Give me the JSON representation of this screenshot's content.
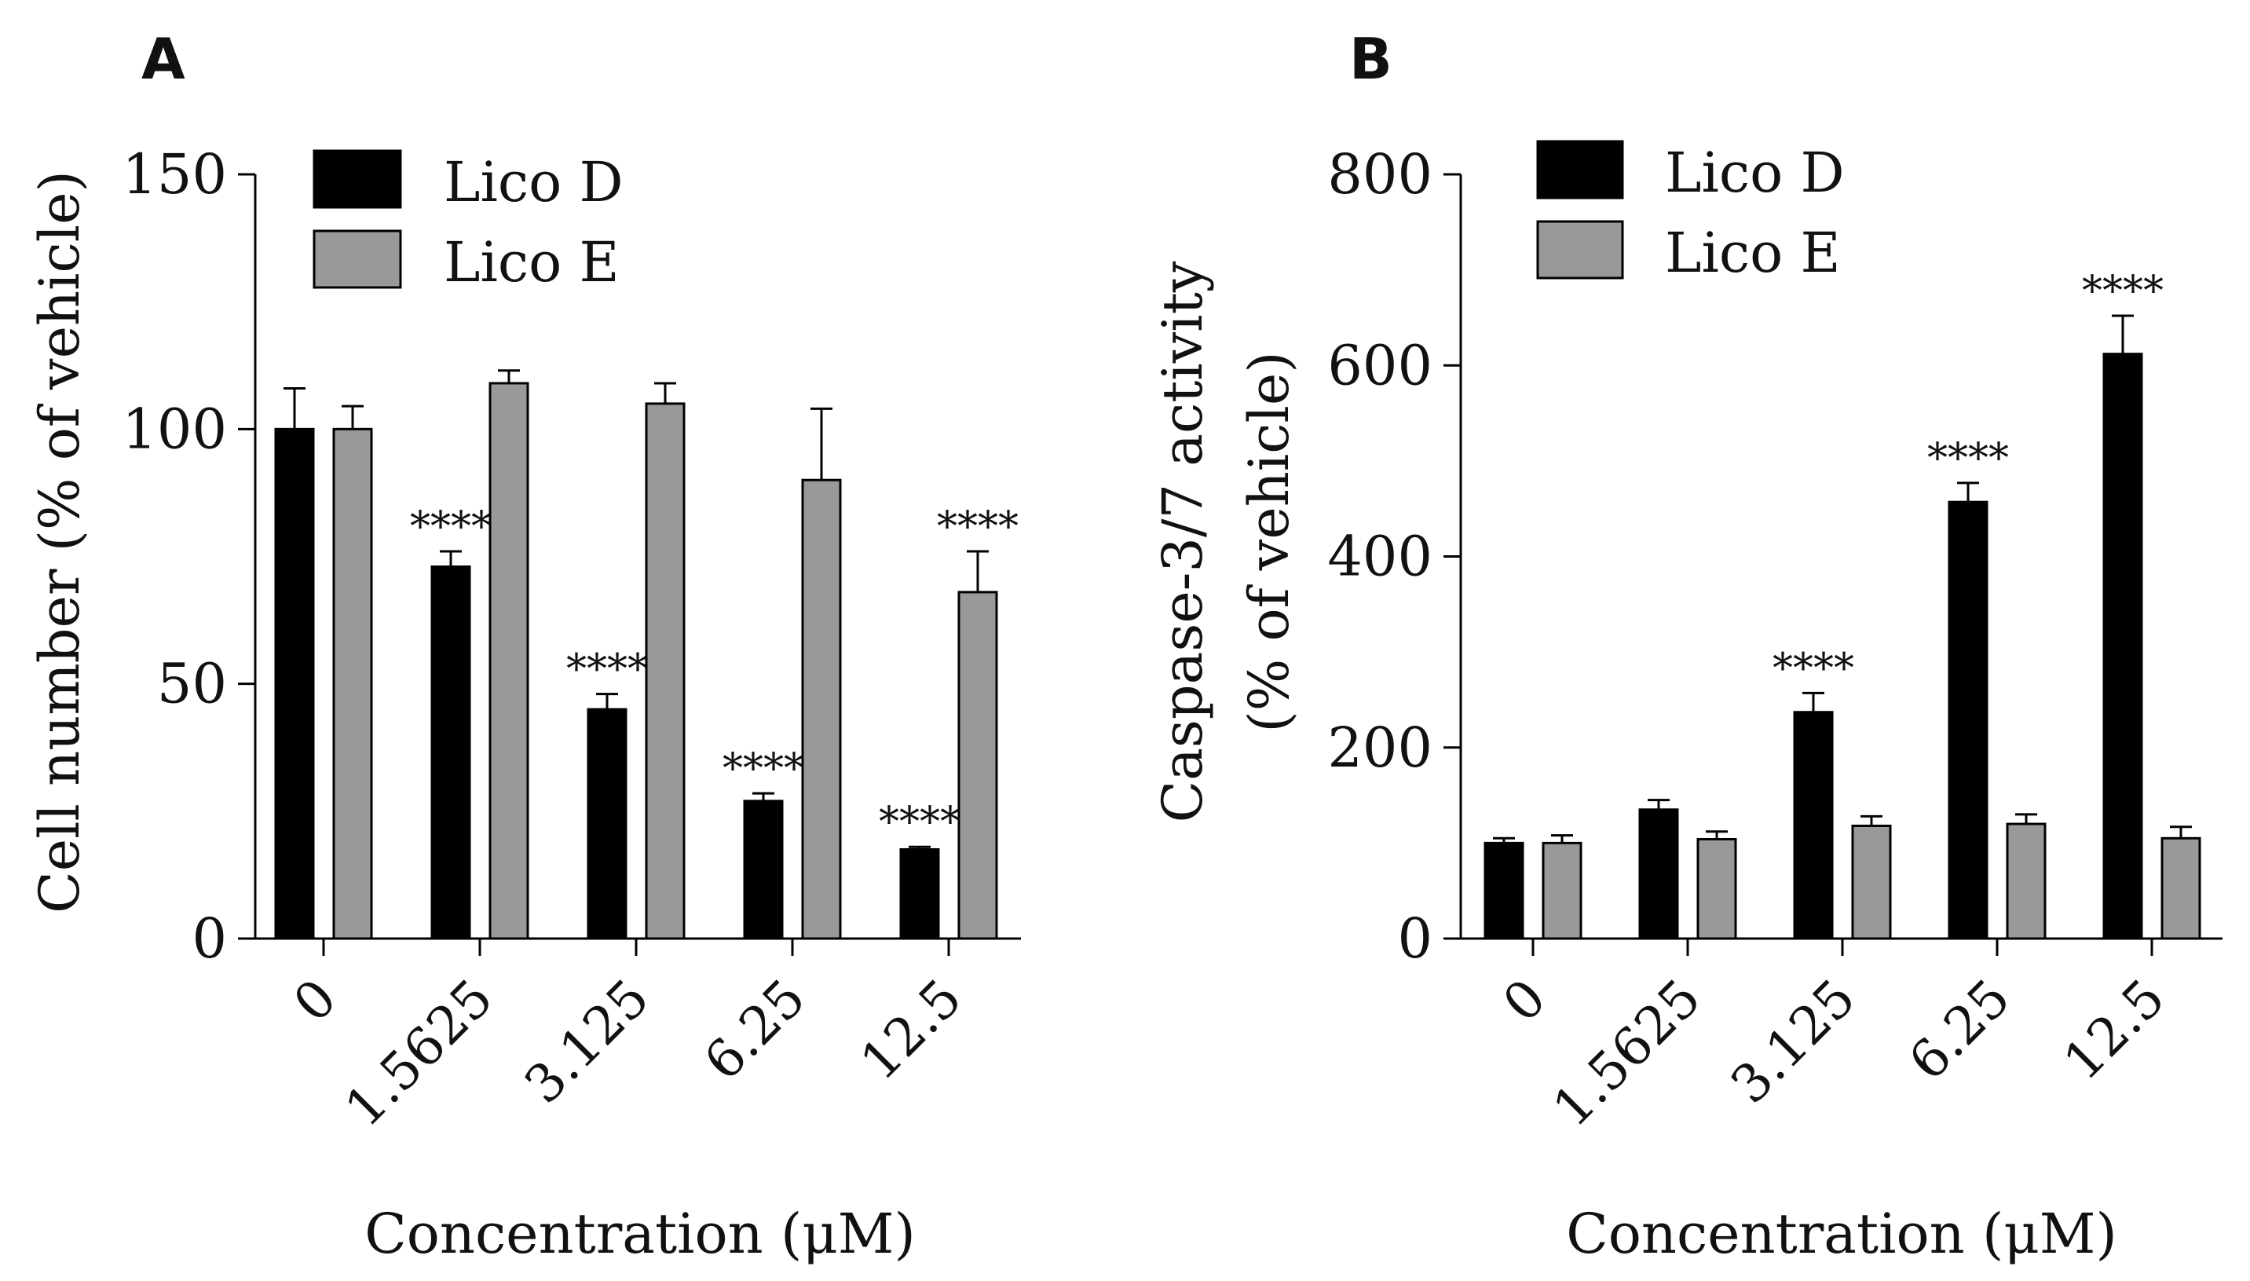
{
  "chart_data": [
    {
      "panel": "A",
      "type": "bar",
      "title": "",
      "xlabel": "Concentration (μM)",
      "ylabel": "Cell number (% of vehicle)",
      "ylim": [
        0,
        150
      ],
      "yticks": [
        0,
        50,
        100,
        150
      ],
      "categories": [
        "0",
        "1.5625",
        "3.125",
        "6.25",
        "12.5"
      ],
      "legend_position": "top-left",
      "colors": {
        "Lico D": "#000000",
        "Lico E": "#999999"
      },
      "series": [
        {
          "name": "Lico D",
          "values": [
            100,
            73,
            45,
            27,
            17.5
          ],
          "errors": [
            8,
            3,
            3,
            1.5,
            0.5
          ],
          "annotations": [
            "",
            "****",
            "****",
            "****",
            "****"
          ]
        },
        {
          "name": "Lico E",
          "values": [
            100,
            109,
            105,
            90,
            68
          ],
          "errors": [
            4.5,
            2.5,
            4,
            14,
            8
          ],
          "annotations": [
            "",
            "",
            "",
            "",
            "****"
          ]
        }
      ]
    },
    {
      "panel": "B",
      "type": "bar",
      "title": "",
      "xlabel": "Concentration (μM)",
      "ylabel": "Caspase-3/7 activity",
      "ylabel2": "(% of vehicle)",
      "ylim": [
        0,
        800
      ],
      "yticks": [
        0,
        200,
        400,
        600,
        800
      ],
      "categories": [
        "0",
        "1.5625",
        "3.125",
        "6.25",
        "12.5"
      ],
      "legend_position": "top-left",
      "colors": {
        "Lico D": "#000000",
        "Lico E": "#999999"
      },
      "series": [
        {
          "name": "Lico D",
          "values": [
            100,
            135,
            237,
            457,
            612
          ],
          "errors": [
            5,
            10,
            20,
            20,
            40
          ],
          "annotations": [
            "",
            "",
            "****",
            "****",
            "****"
          ]
        },
        {
          "name": "Lico E",
          "values": [
            100,
            104,
            118,
            120,
            105
          ],
          "errors": [
            8,
            8,
            10,
            10,
            12
          ],
          "annotations": [
            "",
            "",
            "",
            "",
            ""
          ]
        }
      ]
    }
  ]
}
